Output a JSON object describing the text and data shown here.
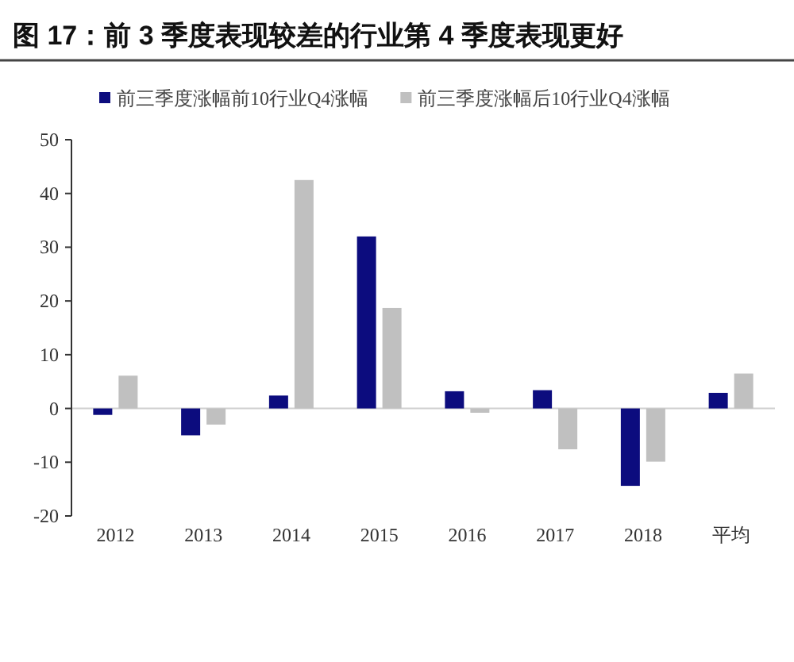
{
  "chart_data": {
    "type": "bar",
    "title": "图 17：前 3 季度表现较差的行业第 4 季度表现更好",
    "categories": [
      "2012",
      "2013",
      "2014",
      "2015",
      "2016",
      "2017",
      "2018",
      "平均"
    ],
    "series": [
      {
        "name": "前三季度涨幅前10行业Q4涨幅",
        "color": "#0c0c7e",
        "values": [
          -1.2,
          -5,
          2.4,
          32,
          3.2,
          3.4,
          -14.4,
          2.9
        ]
      },
      {
        "name": "前三季度涨幅后10行业Q4涨幅",
        "color": "#c0c0c0",
        "values": [
          6.1,
          -3,
          42.5,
          18.7,
          -0.8,
          -7.6,
          -9.9,
          6.5
        ]
      }
    ],
    "ylim": [
      -20,
      50
    ],
    "yticks": [
      -20,
      -10,
      0,
      10,
      20,
      30,
      40,
      50
    ],
    "legend": "top"
  }
}
